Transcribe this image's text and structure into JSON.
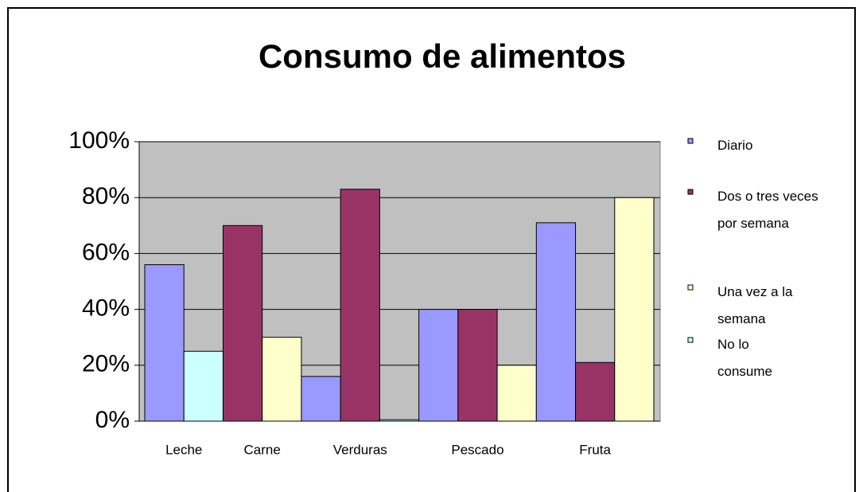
{
  "chart_data": {
    "type": "bar",
    "title": "Consumo de alimentos",
    "categories": [
      "Leche",
      "Carne",
      "Verduras",
      "Pescado",
      "Fruta"
    ],
    "series": [
      {
        "name": "Diario",
        "color": "#9999ff",
        "values": [
          56,
          null,
          16,
          40,
          71
        ]
      },
      {
        "name": "Dos o tres veces\npor semana",
        "color": "#993366",
        "values": [
          null,
          70,
          83,
          40,
          21
        ]
      },
      {
        "name": "Una vez a la\nsemana",
        "color": "#ffffcc",
        "values": [
          null,
          30,
          null,
          20,
          80
        ]
      },
      {
        "name": "No lo\nconsume",
        "color": "#ccffff",
        "values": [
          25,
          null,
          0.5,
          null,
          null
        ]
      }
    ],
    "ylim": [
      0,
      100
    ],
    "yticks": [
      {
        "value": 0,
        "label": "0%"
      },
      {
        "value": 20,
        "label": "20%"
      },
      {
        "value": 40,
        "label": "40%"
      },
      {
        "value": 60,
        "label": "60%"
      },
      {
        "value": 80,
        "label": "80%"
      },
      {
        "value": 100,
        "label": "100%"
      }
    ],
    "grid": true,
    "plot_background": "#c0c0c0",
    "legend": "right"
  }
}
